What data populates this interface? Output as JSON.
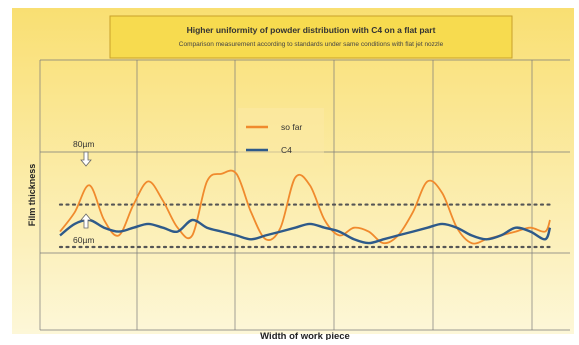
{
  "chart_data": {
    "type": "line",
    "title": "Higher uniformity of powder distribution with C4 on a flat part",
    "subtitle": "Comparison measurement according to standards under same conditions with flat jet nozzle",
    "xlabel": "Width of work piece",
    "ylabel": "Film thickness",
    "grid": true,
    "legend_position": "center-top",
    "colors": {
      "background_top": "#f9df72",
      "background_bottom": "#fdf7d8",
      "grid": "#7a7a7a",
      "title_box": "#f7db4f",
      "so_far": "#f08a2d",
      "c4": "#2e5a8a",
      "reference": "#555555"
    },
    "ylim": [
      40,
      110
    ],
    "x": [
      0,
      3,
      6,
      9,
      12,
      15,
      18,
      21,
      24,
      27,
      30,
      33,
      36,
      39,
      42,
      45,
      48,
      51,
      54,
      57,
      60,
      63,
      66,
      69,
      72,
      75,
      78,
      81,
      84,
      87,
      90,
      93,
      96,
      99,
      100
    ],
    "xlim": [
      0,
      100
    ],
    "series": [
      {
        "name": "so far",
        "values": [
          65,
          70,
          77,
          68,
          64,
          72,
          78,
          73,
          66,
          64,
          78,
          80,
          80,
          70,
          63,
          66,
          79,
          77,
          68,
          64,
          66,
          65,
          62,
          64,
          70,
          78,
          75,
          66,
          62,
          63,
          64,
          65,
          66,
          65,
          68
        ]
      },
      {
        "name": "C4",
        "values": [
          64,
          67,
          68,
          66,
          65,
          66,
          67,
          66,
          65,
          68,
          66,
          65,
          64,
          63,
          64,
          65,
          66,
          67,
          66,
          65,
          63,
          62,
          63,
          64,
          65,
          66,
          67,
          66,
          64,
          63,
          64,
          66,
          65,
          63,
          66
        ]
      }
    ],
    "reference_lines": [
      {
        "value": 72,
        "label": "80µm"
      },
      {
        "value": 61,
        "label": "60µm"
      }
    ]
  }
}
